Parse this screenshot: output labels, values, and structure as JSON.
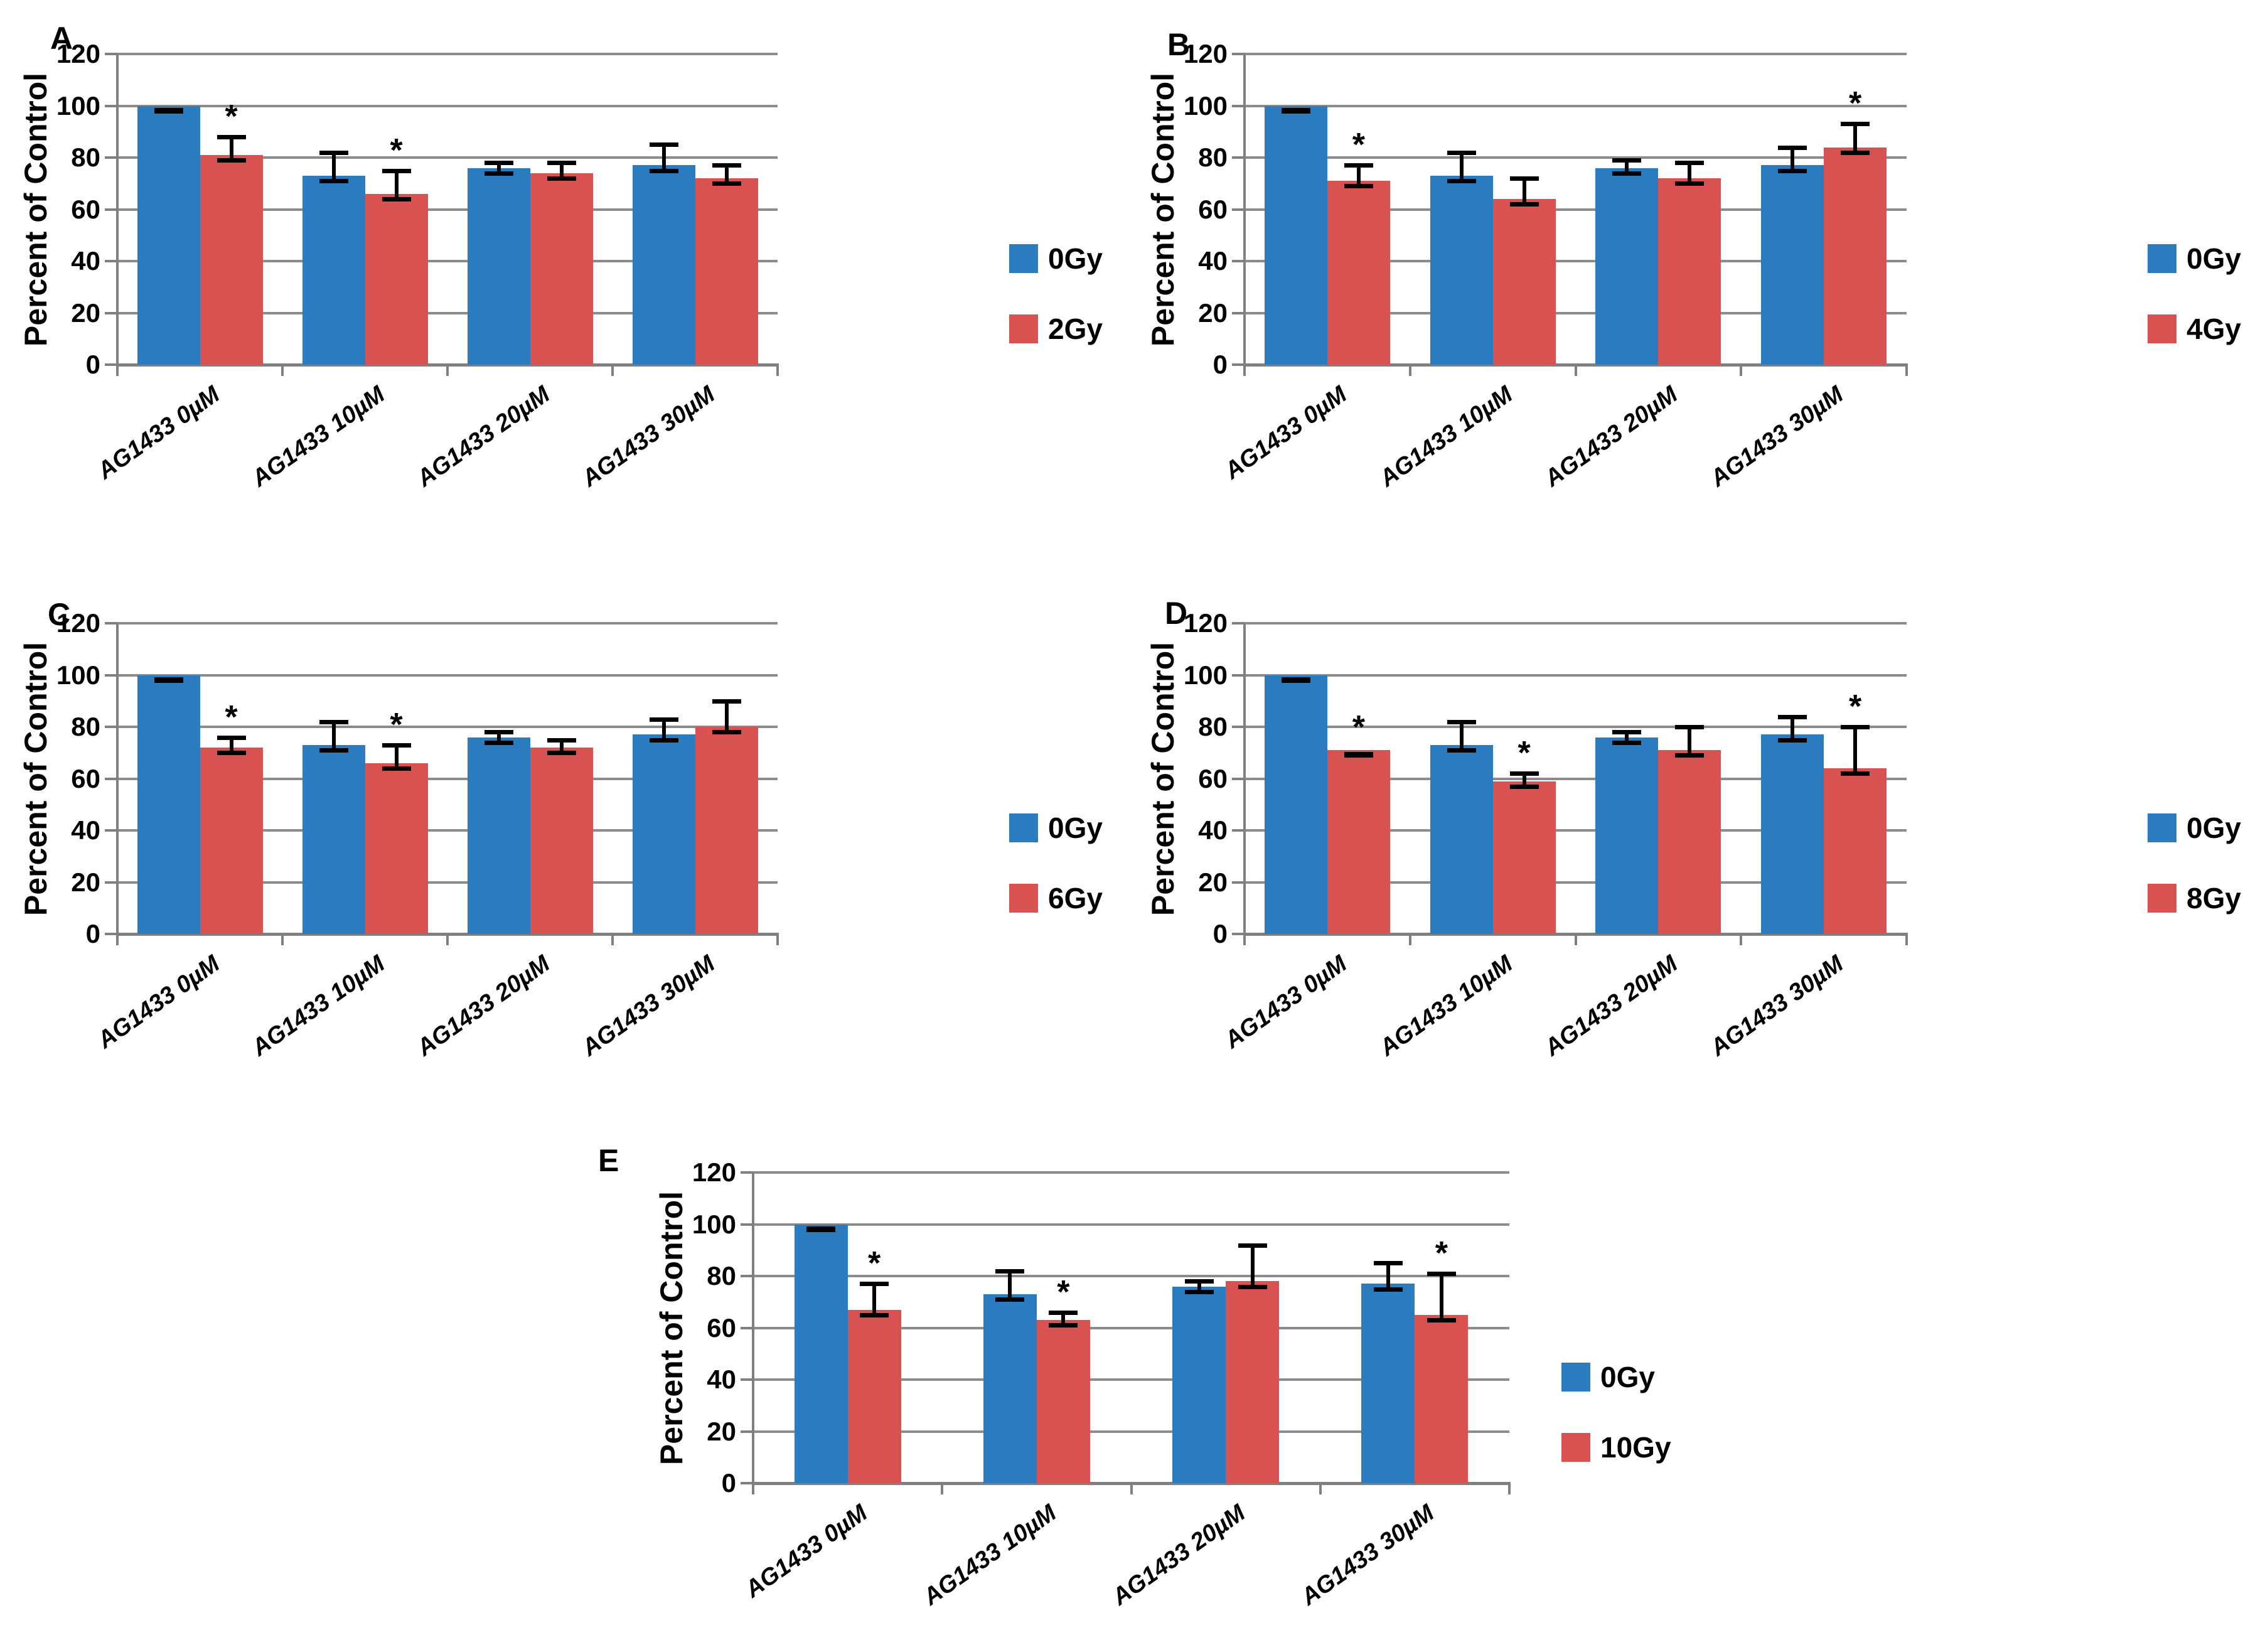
{
  "figure": {
    "ylabel": "Percent of Control",
    "categories": [
      "AG1433 0µM",
      "AG1433 10µM",
      "AG1433 20µM",
      "AG1433 30µM"
    ],
    "yticks": [
      0,
      20,
      40,
      60,
      80,
      100,
      120
    ],
    "ylim": [
      0,
      120
    ],
    "significance_marker": "*",
    "colors": {
      "control_blue": "#2A7CBE",
      "irradiated_red": "#D95252",
      "gridline": "#8c8c8c",
      "axis": "#808080",
      "error_bar": "#000000",
      "text": "#000000"
    }
  },
  "chart_data": [
    {
      "type": "bar",
      "panel": "A",
      "legend": [
        "0Gy",
        "2Gy"
      ],
      "categories": [
        "AG1433 0µM",
        "AG1433 10µM",
        "AG1433 20µM",
        "AG1433 30µM"
      ],
      "series": [
        {
          "name": "0Gy",
          "values": [
            100,
            73,
            76,
            77
          ],
          "errors": [
            1,
            9,
            2,
            8
          ],
          "significant": [
            false,
            false,
            false,
            false
          ]
        },
        {
          "name": "2Gy",
          "values": [
            81,
            66,
            74,
            72
          ],
          "errors": [
            7,
            9,
            4,
            5
          ],
          "significant": [
            true,
            true,
            false,
            false
          ]
        }
      ]
    },
    {
      "type": "bar",
      "panel": "B",
      "legend": [
        "0Gy",
        "4Gy"
      ],
      "categories": [
        "AG1433 0µM",
        "AG1433 10µM",
        "AG1433 20µM",
        "AG1433 30µM"
      ],
      "series": [
        {
          "name": "0Gy",
          "values": [
            100,
            73,
            76,
            77
          ],
          "errors": [
            1,
            9,
            3,
            7
          ],
          "significant": [
            false,
            false,
            false,
            false
          ]
        },
        {
          "name": "4Gy",
          "values": [
            71,
            64,
            72,
            84
          ],
          "errors": [
            6,
            8,
            6,
            9
          ],
          "significant": [
            true,
            false,
            false,
            true
          ]
        }
      ]
    },
    {
      "type": "bar",
      "panel": "C",
      "legend": [
        "0Gy",
        "6Gy"
      ],
      "categories": [
        "AG1433 0µM",
        "AG1433 10µM",
        "AG1433 20µM",
        "AG1433 30µM"
      ],
      "series": [
        {
          "name": "0Gy",
          "values": [
            100,
            73,
            76,
            77
          ],
          "errors": [
            1,
            9,
            2,
            6
          ],
          "significant": [
            false,
            false,
            false,
            false
          ]
        },
        {
          "name": "6Gy",
          "values": [
            72,
            66,
            72,
            80
          ],
          "errors": [
            4,
            7,
            3,
            10
          ],
          "significant": [
            true,
            true,
            false,
            false
          ]
        }
      ]
    },
    {
      "type": "bar",
      "panel": "D",
      "legend": [
        "0Gy",
        "8Gy"
      ],
      "categories": [
        "AG1433 0µM",
        "AG1433 10µM",
        "AG1433 20µM",
        "AG1433 30µM"
      ],
      "series": [
        {
          "name": "0Gy",
          "values": [
            100,
            73,
            76,
            77
          ],
          "errors": [
            1,
            9,
            2,
            7
          ],
          "significant": [
            false,
            false,
            false,
            false
          ]
        },
        {
          "name": "8Gy",
          "values": [
            71,
            59,
            71,
            64
          ],
          "errors": [
            1,
            3,
            9,
            16
          ],
          "significant": [
            true,
            true,
            false,
            true
          ]
        }
      ]
    },
    {
      "type": "bar",
      "panel": "E",
      "legend": [
        "0Gy",
        "10Gy"
      ],
      "categories": [
        "AG1433 0µM",
        "AG1433 10µM",
        "AG1433 20µM",
        "AG1433 30µM"
      ],
      "series": [
        {
          "name": "0Gy",
          "values": [
            100,
            73,
            76,
            77
          ],
          "errors": [
            1,
            9,
            2,
            8
          ],
          "significant": [
            false,
            false,
            false,
            false
          ]
        },
        {
          "name": "10Gy",
          "values": [
            67,
            63,
            78,
            65
          ],
          "errors": [
            10,
            3,
            14,
            16
          ],
          "significant": [
            true,
            true,
            false,
            true
          ]
        }
      ]
    }
  ]
}
